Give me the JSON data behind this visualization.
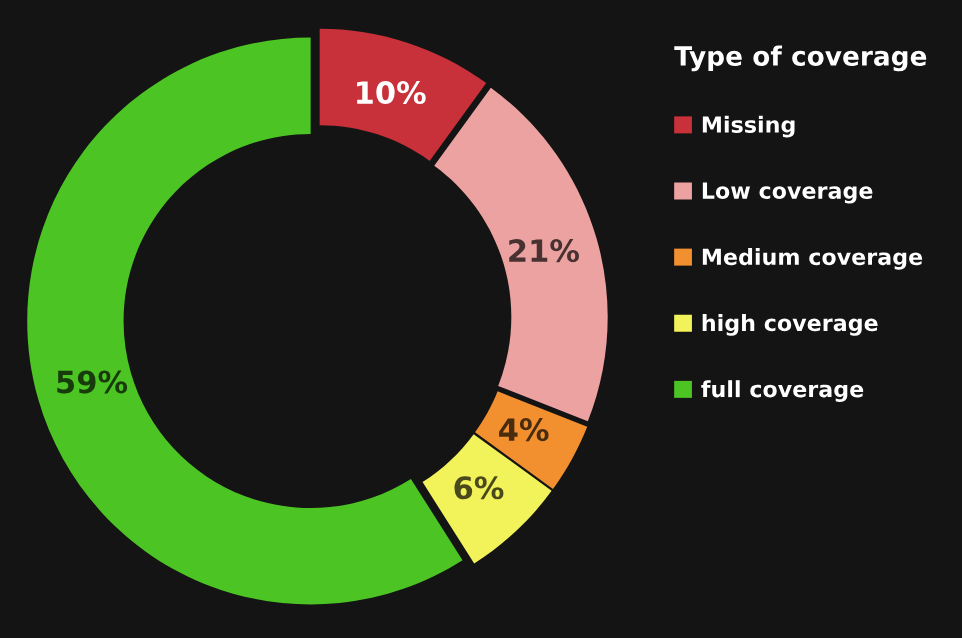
{
  "chart_data": {
    "type": "donut",
    "legend_title": "Type of coverage",
    "categories": [
      "Missing",
      "Low coverage",
      "Medium coverage",
      "high coverage",
      "full coverage"
    ],
    "values": [
      10,
      21,
      4,
      6,
      59
    ],
    "value_labels": [
      "10%",
      "21%",
      "4%",
      "6%",
      "59%"
    ],
    "colors": [
      "#c8303a",
      "#eda2a2",
      "#f29030",
      "#f2f25a",
      "#4cc424"
    ],
    "legend": "right"
  }
}
